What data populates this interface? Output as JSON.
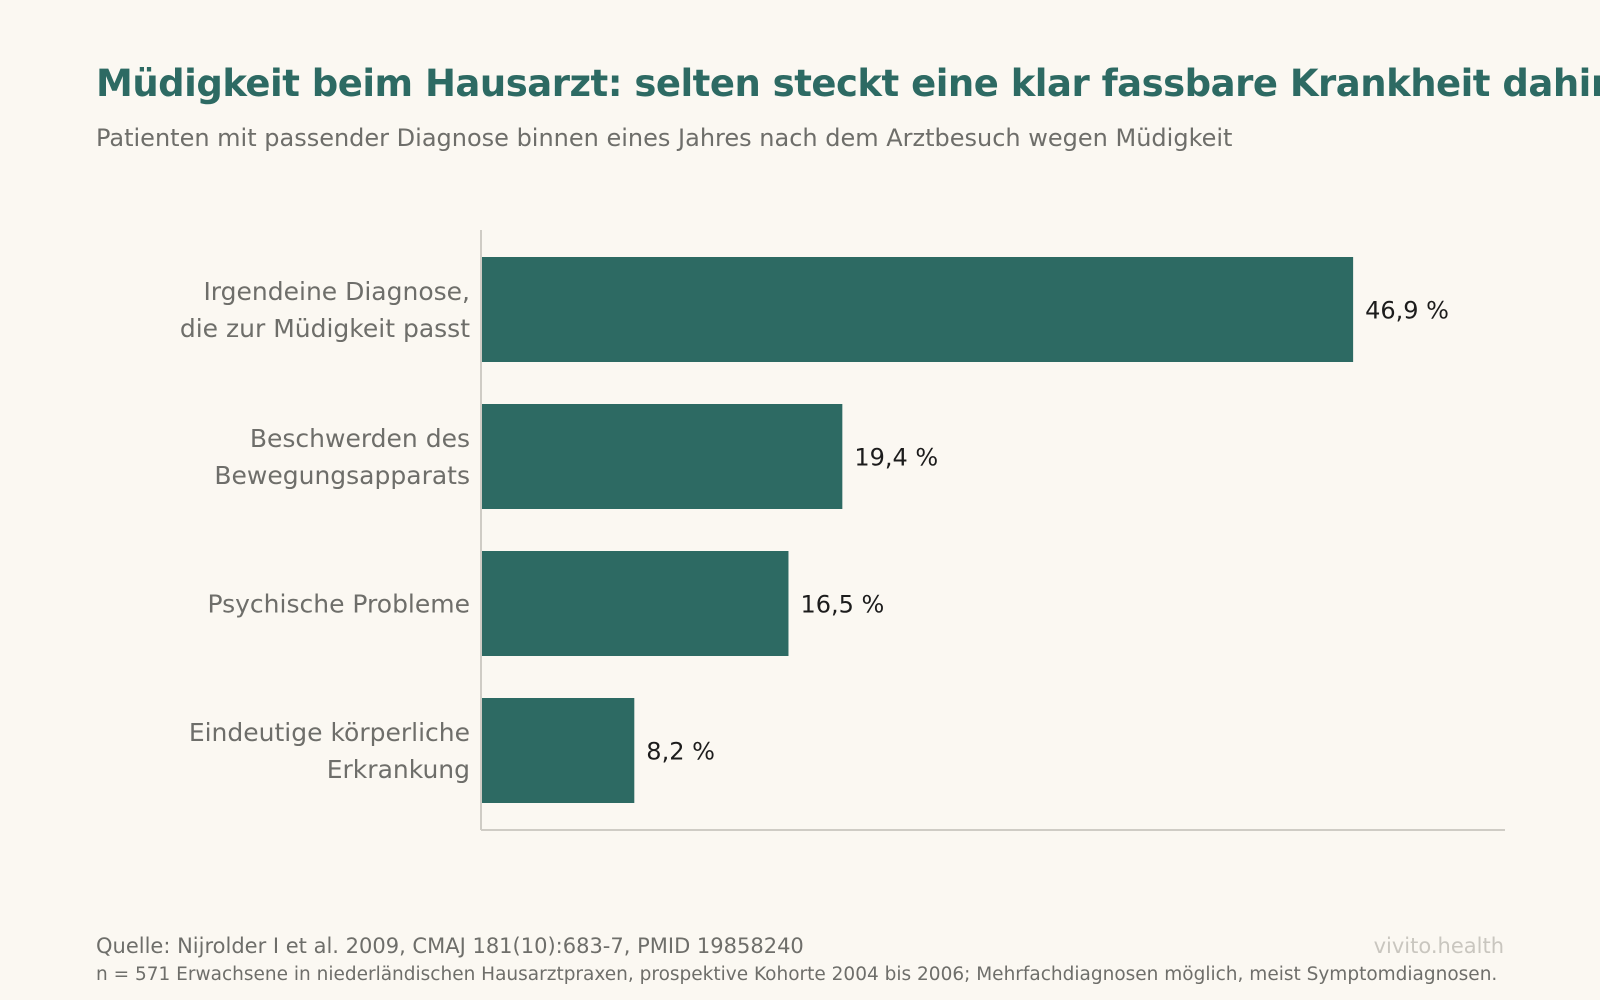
{
  "header": {
    "title": "Müdigkeit beim Hausarzt: selten steckt eine klar fassbare Krankheit dahinter",
    "subtitle": "Patienten mit passender Diagnose binnen eines Jahres nach dem Arztbesuch wegen Müdigkeit"
  },
  "chart_data": {
    "type": "bar",
    "orientation": "horizontal",
    "categories": [
      [
        "Irgendeine Diagnose,",
        "die zur Müdigkeit passt"
      ],
      [
        "Beschwerden des",
        "Bewegungsapparats"
      ],
      [
        "Psychische Probleme"
      ],
      [
        "Eindeutige körperliche",
        "Erkrankung"
      ]
    ],
    "values": [
      46.9,
      19.4,
      16.5,
      8.2
    ],
    "value_labels": [
      "46,9 %",
      "19,4 %",
      "16,5 %",
      "8,2 %"
    ],
    "xlim": [
      0,
      54
    ],
    "grid": false,
    "bar_color": "#2d6a63"
  },
  "footer": {
    "source": "Quelle: Nijrolder I et al. 2009, CMAJ 181(10):683-7, PMID 19858240",
    "note": "n = 571 Erwachsene in niederländischen Hausarztpraxen, prospektive Kohorte 2004 bis 2006; Mehrfachdiagnosen möglich, meist Symptomdiagnosen.",
    "brand": "vivito.health"
  }
}
